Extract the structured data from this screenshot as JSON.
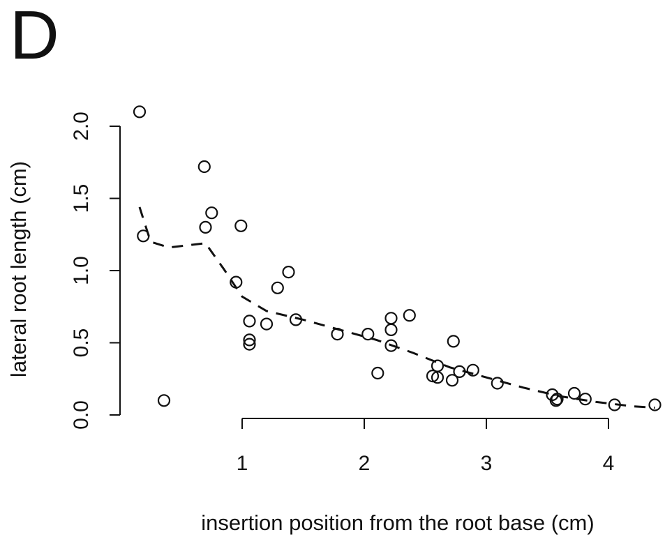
{
  "figure": {
    "panel_label": "D"
  },
  "chart_data": {
    "type": "scatter",
    "title": "",
    "xlabel": "insertion position from the root base (cm)",
    "ylabel": "lateral root length (cm)",
    "xlim": [
      0.0,
      4.4
    ],
    "ylim": [
      0.0,
      2.1
    ],
    "x_ticks": [
      1,
      2,
      3,
      4
    ],
    "x_tick_labels": [
      "1",
      "2",
      "3",
      "4"
    ],
    "y_ticks": [
      0.0,
      0.5,
      1.0,
      1.5,
      2.0
    ],
    "y_tick_labels": [
      "0.0",
      "0.5",
      "1.0",
      "1.5",
      "2.0"
    ],
    "grid": false,
    "legend": "none",
    "series": [
      {
        "marker": "open-circle",
        "x": [
          0.16,
          0.19,
          0.36,
          0.69,
          0.7,
          0.75,
          0.99,
          0.95,
          1.06,
          1.06,
          1.06,
          1.2,
          1.29,
          1.38,
          1.44,
          1.78,
          2.03,
          2.11,
          2.22,
          2.22,
          2.22,
          2.37,
          2.56,
          2.6,
          2.6,
          2.72,
          2.73,
          2.78,
          2.89,
          3.09,
          3.54,
          3.57,
          3.58,
          3.72,
          3.81,
          4.05,
          4.38
        ],
        "y": [
          2.1,
          1.24,
          0.1,
          1.72,
          1.3,
          1.4,
          1.31,
          0.92,
          0.65,
          0.52,
          0.49,
          0.63,
          0.88,
          0.99,
          0.66,
          0.56,
          0.56,
          0.29,
          0.67,
          0.59,
          0.48,
          0.69,
          0.27,
          0.34,
          0.26,
          0.24,
          0.51,
          0.3,
          0.31,
          0.22,
          0.14,
          0.1,
          0.11,
          0.15,
          0.11,
          0.07,
          0.07
        ]
      },
      {
        "style": "dashed-line",
        "x": [
          0.16,
          0.25,
          0.4,
          0.7,
          0.85,
          1.0,
          1.2,
          1.5,
          1.8,
          2.1,
          2.4,
          2.7,
          3.0,
          3.3,
          3.6,
          3.9,
          4.2,
          4.38
        ],
        "y": [
          1.44,
          1.2,
          1.16,
          1.19,
          1.01,
          0.82,
          0.72,
          0.66,
          0.59,
          0.52,
          0.43,
          0.33,
          0.26,
          0.19,
          0.13,
          0.09,
          0.06,
          0.05
        ]
      }
    ]
  }
}
